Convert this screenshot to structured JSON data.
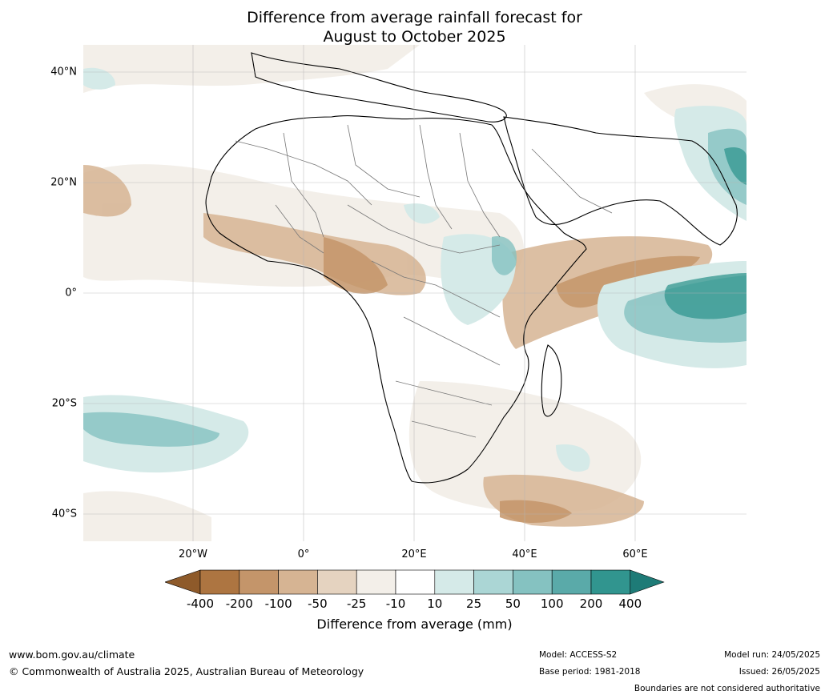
{
  "title_line1": "Difference from average rainfall forecast for",
  "title_line2": "August to October 2025",
  "lat_labels": [
    "40°N",
    "20°N",
    "0°",
    "20°S",
    "40°S"
  ],
  "lon_labels": [
    "20°W",
    "0°",
    "20°E",
    "40°E",
    "60°E"
  ],
  "colorbar": {
    "levels": [
      "-400",
      "-200",
      "-100",
      "-50",
      "-25",
      "-10",
      "10",
      "25",
      "50",
      "100",
      "200",
      "400"
    ],
    "colors": [
      "#8e5a2a",
      "#ad7541",
      "#c4956a",
      "#d6b493",
      "#e5d3c0",
      "#f3efe9",
      "#ffffff",
      "#d5eae8",
      "#abd6d5",
      "#85c2c1",
      "#5aaaa9",
      "#31958f",
      "#1e7b77"
    ],
    "title": "Difference from average (mm)"
  },
  "footer": {
    "website": "www.bom.gov.au/climate",
    "copyright": "© Commonwealth of Australia 2025, Australian Bureau of Meteorology",
    "model": "Model: ACCESS-S2",
    "base_period": "Base period: 1981-2018",
    "model_run": "Model run: 24/05/2025",
    "issued": "Issued: 26/05/2025",
    "disclaimer": "Boundaries are not considered authoritative"
  }
}
